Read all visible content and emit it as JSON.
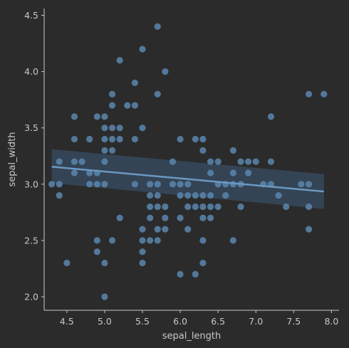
{
  "chart_data": {
    "type": "scatter",
    "title": "",
    "xlabel": "sepal_length",
    "ylabel": "sepal_width",
    "xlim": [
      4.2,
      8.1
    ],
    "ylim": [
      1.88,
      4.56
    ],
    "xticks": [
      "4.5",
      "5.0",
      "5.5",
      "6.0",
      "6.5",
      "7.0",
      "7.5",
      "8.0"
    ],
    "yticks": [
      "2.0",
      "2.5",
      "3.0",
      "3.5",
      "4.0",
      "4.5"
    ],
    "grid": false,
    "regression": {
      "x": [
        4.3,
        7.9
      ],
      "y": [
        3.155,
        2.935
      ],
      "ci_lower": [
        3.01,
        2.78
      ],
      "ci_upper": [
        3.31,
        3.09
      ]
    },
    "points": [
      [
        4.3,
        3.0
      ],
      [
        4.4,
        2.9
      ],
      [
        4.4,
        3.0
      ],
      [
        4.4,
        3.2
      ],
      [
        4.5,
        2.3
      ],
      [
        4.6,
        3.1
      ],
      [
        4.6,
        3.2
      ],
      [
        4.6,
        3.4
      ],
      [
        4.6,
        3.6
      ],
      [
        4.7,
        3.2
      ],
      [
        4.8,
        3.0
      ],
      [
        4.8,
        3.1
      ],
      [
        4.8,
        3.4
      ],
      [
        4.9,
        2.4
      ],
      [
        4.9,
        2.5
      ],
      [
        4.9,
        3.0
      ],
      [
        4.9,
        3.1
      ],
      [
        4.9,
        3.6
      ],
      [
        5.0,
        2.0
      ],
      [
        5.0,
        2.3
      ],
      [
        5.0,
        3.0
      ],
      [
        5.0,
        3.2
      ],
      [
        5.0,
        3.3
      ],
      [
        5.0,
        3.4
      ],
      [
        5.0,
        3.5
      ],
      [
        5.0,
        3.6
      ],
      [
        5.1,
        2.5
      ],
      [
        5.1,
        3.3
      ],
      [
        5.1,
        3.4
      ],
      [
        5.1,
        3.5
      ],
      [
        5.1,
        3.7
      ],
      [
        5.1,
        3.8
      ],
      [
        5.2,
        2.7
      ],
      [
        5.2,
        3.4
      ],
      [
        5.2,
        3.5
      ],
      [
        5.2,
        4.1
      ],
      [
        5.3,
        3.7
      ],
      [
        5.4,
        3.0
      ],
      [
        5.4,
        3.4
      ],
      [
        5.4,
        3.7
      ],
      [
        5.4,
        3.9
      ],
      [
        5.5,
        2.3
      ],
      [
        5.5,
        2.4
      ],
      [
        5.5,
        2.5
      ],
      [
        5.5,
        2.6
      ],
      [
        5.5,
        3.5
      ],
      [
        5.5,
        4.2
      ],
      [
        5.6,
        2.5
      ],
      [
        5.6,
        2.7
      ],
      [
        5.6,
        2.8
      ],
      [
        5.6,
        2.9
      ],
      [
        5.6,
        3.0
      ],
      [
        5.7,
        2.5
      ],
      [
        5.7,
        2.6
      ],
      [
        5.7,
        2.8
      ],
      [
        5.7,
        2.9
      ],
      [
        5.7,
        3.0
      ],
      [
        5.7,
        3.8
      ],
      [
        5.7,
        4.4
      ],
      [
        5.8,
        2.6
      ],
      [
        5.8,
        2.7
      ],
      [
        5.8,
        2.8
      ],
      [
        5.8,
        4.0
      ],
      [
        5.9,
        3.0
      ],
      [
        5.9,
        3.2
      ],
      [
        6.0,
        2.2
      ],
      [
        6.0,
        2.7
      ],
      [
        6.0,
        2.9
      ],
      [
        6.0,
        3.0
      ],
      [
        6.0,
        3.4
      ],
      [
        6.1,
        2.6
      ],
      [
        6.1,
        2.8
      ],
      [
        6.1,
        2.9
      ],
      [
        6.1,
        3.0
      ],
      [
        6.2,
        2.2
      ],
      [
        6.2,
        2.8
      ],
      [
        6.2,
        2.9
      ],
      [
        6.2,
        3.4
      ],
      [
        6.3,
        2.3
      ],
      [
        6.3,
        2.5
      ],
      [
        6.3,
        2.7
      ],
      [
        6.3,
        2.8
      ],
      [
        6.3,
        2.9
      ],
      [
        6.3,
        3.3
      ],
      [
        6.3,
        3.4
      ],
      [
        6.4,
        2.7
      ],
      [
        6.4,
        2.8
      ],
      [
        6.4,
        2.9
      ],
      [
        6.4,
        3.1
      ],
      [
        6.4,
        3.2
      ],
      [
        6.5,
        2.8
      ],
      [
        6.5,
        3.0
      ],
      [
        6.5,
        3.2
      ],
      [
        6.6,
        2.9
      ],
      [
        6.6,
        3.0
      ],
      [
        6.7,
        2.5
      ],
      [
        6.7,
        3.0
      ],
      [
        6.7,
        3.1
      ],
      [
        6.7,
        3.3
      ],
      [
        6.8,
        2.8
      ],
      [
        6.8,
        3.0
      ],
      [
        6.8,
        3.2
      ],
      [
        6.9,
        3.1
      ],
      [
        6.9,
        3.2
      ],
      [
        7.0,
        3.2
      ],
      [
        7.1,
        3.0
      ],
      [
        7.2,
        3.0
      ],
      [
        7.2,
        3.2
      ],
      [
        7.2,
        3.6
      ],
      [
        7.3,
        2.9
      ],
      [
        7.4,
        2.8
      ],
      [
        7.6,
        3.0
      ],
      [
        7.7,
        2.6
      ],
      [
        7.7,
        2.8
      ],
      [
        7.7,
        3.0
      ],
      [
        7.7,
        3.8
      ],
      [
        7.9,
        3.8
      ]
    ],
    "colors": {
      "background": "#2b2b2b",
      "axis": "#c8c8c8",
      "points": "#5a86ae",
      "line": "#6a98c2",
      "band": "#3d5a78"
    }
  }
}
